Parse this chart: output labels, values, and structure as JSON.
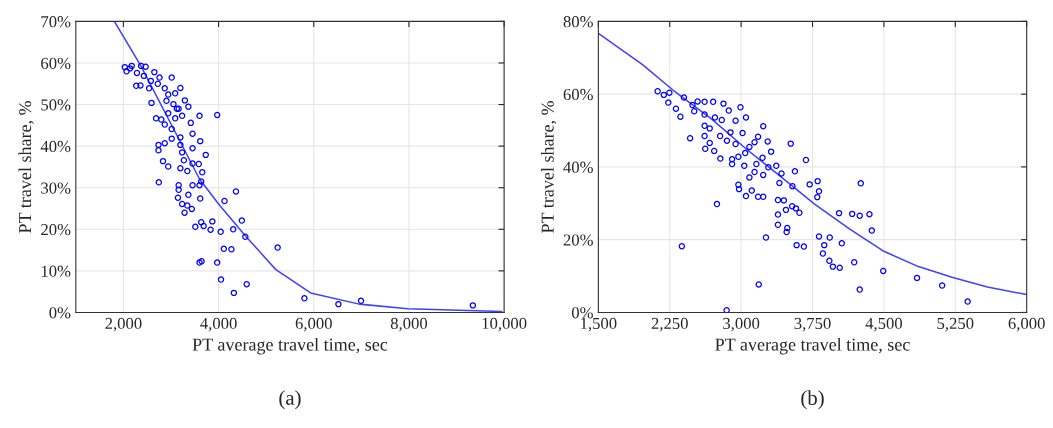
{
  "chart_data": [
    {
      "type": "scatter",
      "xlabel": "PT average travel time, sec",
      "ylabel": "PT travel share, %",
      "annotations": [
        "(a)"
      ],
      "grid": true,
      "xlim": [
        1000,
        10000
      ],
      "xticks": [
        {
          "value": 2000,
          "label": "2,000"
        },
        {
          "value": 4000,
          "label": "4,000"
        },
        {
          "value": 6000,
          "label": "6,000"
        },
        {
          "value": 8000,
          "label": "8,000"
        },
        {
          "value": 10000,
          "label": "10,000"
        }
      ],
      "ylim": [
        0,
        70
      ],
      "yticks": [
        {
          "value": 0,
          "label": "0%"
        },
        {
          "value": 10,
          "label": "10%"
        },
        {
          "value": 20,
          "label": "20%"
        },
        {
          "value": 30,
          "label": "30%"
        },
        {
          "value": 40,
          "label": "40%"
        },
        {
          "value": 50,
          "label": "50%"
        },
        {
          "value": 60,
          "label": "60%"
        },
        {
          "value": 70,
          "label": "70%"
        }
      ],
      "series": [
        {
          "marker": "circle",
          "color": "#0000ff",
          "x": [
            2029,
            2139,
            2285,
            2430,
            2577,
            2723,
            2869,
            3015,
            3197,
            2358,
            2270,
            2591,
            2686,
            2796,
            2869,
            3015,
            3161,
            3292,
            3365,
            3234,
            3416,
            3599,
            3971,
            3453,
            3614,
            3197,
            3015,
            2737,
            2737,
            2869,
            3197,
            3453,
            3730,
            3234,
            3270,
            3197,
            3343,
            3453,
            3584,
            3657,
            2832,
            2942,
            2744,
            3161,
            3161,
            3453,
            3599,
            3635,
            4365,
            4124,
            3146,
            3234,
            3343,
            3438,
            3285,
            3365,
            3614,
            3635,
            3511,
            3686,
            3869,
            3832,
            4044,
            4307,
            4489,
            4562,
            4110,
            4270,
            5241,
            3599,
            3643,
            3971,
            4051,
            4591,
            4321,
            5803,
            6518,
            6993,
            9343,
            2066,
            2175,
            2467,
            2372,
            2650,
            2759,
            2540,
            2942,
            3088,
            2905,
            3051,
            2942,
            3088,
            3124
          ],
          "values": [
            59,
            58.7,
            57.6,
            56.9,
            55.7,
            55,
            53.9,
            56.5,
            54,
            54.6,
            54.5,
            50.4,
            46.7,
            46.4,
            45.2,
            44.1,
            49,
            51,
            49.5,
            47.3,
            45.6,
            47.3,
            47.5,
            43,
            41.2,
            42.1,
            41.8,
            40.3,
            39,
            40.7,
            40.3,
            39.5,
            37.9,
            38.5,
            36.6,
            34.7,
            34,
            35.8,
            35.7,
            33.7,
            36.4,
            35.1,
            31.3,
            30.6,
            29.5,
            30.6,
            30.6,
            31.5,
            29.1,
            26.8,
            27.6,
            26.1,
            25.7,
            24.9,
            24,
            28.3,
            27.4,
            21.7,
            20.6,
            20.8,
            21.9,
            19.9,
            19.4,
            20,
            22.1,
            18.2,
            15.3,
            15.2,
            15.6,
            12,
            12.3,
            12,
            7.9,
            6.8,
            4.7,
            3.4,
            2,
            2.8,
            1.7,
            58,
            59.3,
            59.1,
            59.3,
            57.8,
            56.5,
            53.9,
            52.4,
            52.7,
            50.9,
            50.1,
            47.9,
            46.7,
            49
          ]
        },
        {
          "type": "line",
          "color": "#4040ff",
          "x": [
            1810,
            2358,
            3088,
            3599,
            4000,
            4547,
            5204,
            5934,
            6956,
            7978,
            9949
          ],
          "values": [
            70,
            59.5,
            43.4,
            32.1,
            26.1,
            18.6,
            10.3,
            4.7,
            2,
            0.9,
            0.2
          ]
        }
      ]
    },
    {
      "type": "scatter",
      "xlabel": "PT average travel time, sec",
      "ylabel": "PT travel share, %",
      "annotations": [
        "(b)"
      ],
      "grid": true,
      "xlim": [
        1500,
        6000
      ],
      "xticks": [
        {
          "value": 1500,
          "label": "1,500"
        },
        {
          "value": 2250,
          "label": "2,250"
        },
        {
          "value": 3000,
          "label": "3,000"
        },
        {
          "value": 3750,
          "label": "3,750"
        },
        {
          "value": 4500,
          "label": "4,500"
        },
        {
          "value": 5250,
          "label": "5,250"
        },
        {
          "value": 6000,
          "label": "6,000"
        }
      ],
      "ylim": [
        0,
        80
      ],
      "yticks": [
        {
          "value": 0,
          "label": "0%"
        },
        {
          "value": 20,
          "label": "20%"
        },
        {
          "value": 40,
          "label": "40%"
        },
        {
          "value": 60,
          "label": "60%"
        },
        {
          "value": 80,
          "label": "80%"
        }
      ],
      "series": [
        {
          "marker": "circle",
          "color": "#0000ff",
          "x": [
            2123,
            2188,
            2246,
            2235,
            2315,
            2362,
            2399,
            2489,
            2543,
            2616,
            2706,
            2815,
            2507,
            2616,
            2725,
            2797,
            2870,
            2993,
            3051,
            2942,
            2616,
            2670,
            2779,
            2851,
            2942,
            3015,
            3232,
            2464,
            2616,
            2623,
            2670,
            2717,
            2782,
            2905,
            2905,
            2971,
            3033,
            3087,
            3141,
            3178,
            3279,
            3315,
            3225,
            3160,
            3141,
            3232,
            3286,
            3369,
            3424,
            3521,
            3681,
            3565,
            3402,
            3539,
            3720,
            3804,
            3818,
            3800,
            4257,
            2971,
            2978,
            3051,
            3112,
            3178,
            3232,
            3087,
            3387,
            3449,
            3471,
            3536,
            3576,
            3612,
            3387,
            3387,
            3485,
            3478,
            3261,
            3583,
            3659,
            4029,
            4167,
            4246,
            4348,
            4373,
            3818,
            3931,
            3873,
            4058,
            3859,
            3927,
            3964,
            4036,
            4188,
            4246,
            4493,
            4848,
            5112,
            5380,
            2377,
            2746,
            3185,
            2848,
            3043,
            2888
          ],
          "values": [
            60.8,
            59.8,
            60.4,
            57.7,
            56,
            53.8,
            59.1,
            57,
            58,
            57.9,
            57.9,
            57.4,
            55.3,
            54.4,
            53.6,
            52.9,
            55.5,
            56.4,
            53.6,
            52.7,
            51.3,
            50.6,
            48.5,
            47.2,
            46.3,
            49.3,
            51.2,
            47.9,
            48.5,
            45,
            46.6,
            44.4,
            42.3,
            42.1,
            40.8,
            42.8,
            40.3,
            45.5,
            46.8,
            48.3,
            47,
            44.2,
            42.5,
            40.8,
            38.6,
            37.8,
            39.9,
            40.3,
            38.2,
            46.4,
            41.9,
            38.8,
            35.6,
            34.7,
            35.2,
            36.1,
            33.3,
            31.7,
            35.5,
            35.1,
            33.9,
            32,
            33.5,
            31.8,
            31.8,
            37.1,
            30.9,
            30.8,
            28.2,
            29.2,
            28.6,
            27.4,
            26.9,
            24.1,
            23.2,
            22.1,
            20.6,
            18.5,
            18.1,
            27.3,
            27.1,
            26.6,
            27,
            22.5,
            20.9,
            20.6,
            18.5,
            19,
            16.2,
            14.2,
            12.6,
            12.3,
            13.8,
            6.3,
            11.4,
            9.5,
            7.4,
            3,
            18.2,
            29.8,
            7.7,
            0.6,
            43.8,
            49.5
          ]
        },
        {
          "type": "line",
          "color": "#4040ff",
          "x": [
            1500,
            1964,
            2290,
            2688,
            3051,
            3413,
            3775,
            4138,
            4500,
            4862,
            5224,
            5587,
            6000
          ],
          "values": [
            76.7,
            68.1,
            61,
            53.2,
            45,
            37.4,
            29.7,
            23,
            16.8,
            12.6,
            9.6,
            7,
            4.9
          ]
        }
      ]
    }
  ]
}
